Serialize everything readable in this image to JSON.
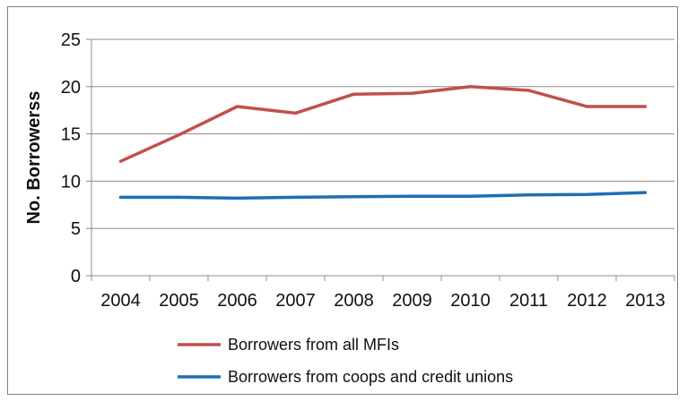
{
  "chart_data": {
    "type": "line",
    "title": "",
    "xlabel": "",
    "ylabel": "No. Borrowerss",
    "categories": [
      "2004",
      "2005",
      "2006",
      "2007",
      "2008",
      "2009",
      "2010",
      "2011",
      "2012",
      "2013"
    ],
    "series": [
      {
        "name": "Borrowers from all MFIs",
        "color": "#c0504d",
        "values": [
          12.1,
          14.9,
          17.9,
          17.2,
          19.2,
          19.3,
          20.0,
          19.6,
          17.9,
          17.9
        ]
      },
      {
        "name": "Borrowers from coops and credit unions",
        "color": "#1f6fb2",
        "values": [
          8.3,
          8.3,
          8.2,
          8.3,
          8.35,
          8.4,
          8.4,
          8.55,
          8.6,
          8.8
        ]
      }
    ],
    "ylim": [
      0,
      25
    ],
    "yticks": [
      "0",
      "5",
      "10",
      "15",
      "20",
      "25"
    ],
    "grid": true,
    "legend_position": "bottom"
  }
}
